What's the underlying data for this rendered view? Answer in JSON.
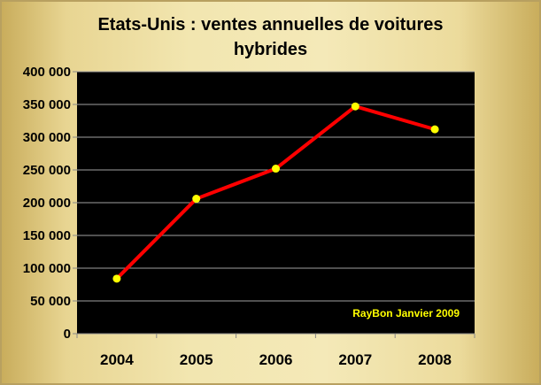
{
  "chart_data": {
    "type": "line",
    "title": "Etats-Unis : ventes annuelles de voitures hybrides",
    "title_lines": [
      "Etats-Unis : ventes annuelles de voitures",
      "hybrides"
    ],
    "categories": [
      "2004",
      "2005",
      "2006",
      "2007",
      "2008"
    ],
    "values": [
      84000,
      206000,
      252000,
      347000,
      312000
    ],
    "ylim": [
      0,
      400000
    ],
    "yticks": [
      0,
      50000,
      100000,
      150000,
      200000,
      250000,
      300000,
      350000,
      400000
    ],
    "ytick_labels": [
      "0",
      "50 000",
      "100 000",
      "150 000",
      "200 000",
      "250 000",
      "300 000",
      "350 000",
      "400 000"
    ],
    "xlabel": "",
    "ylabel": "",
    "grid": true,
    "annotation": "RayBon Janvier 2009",
    "colors": {
      "line": "#ff0000",
      "marker": "#ffff00",
      "plot_bg": "#000000",
      "annotation": "#ffff00",
      "grid": "#a0a0a0"
    }
  }
}
